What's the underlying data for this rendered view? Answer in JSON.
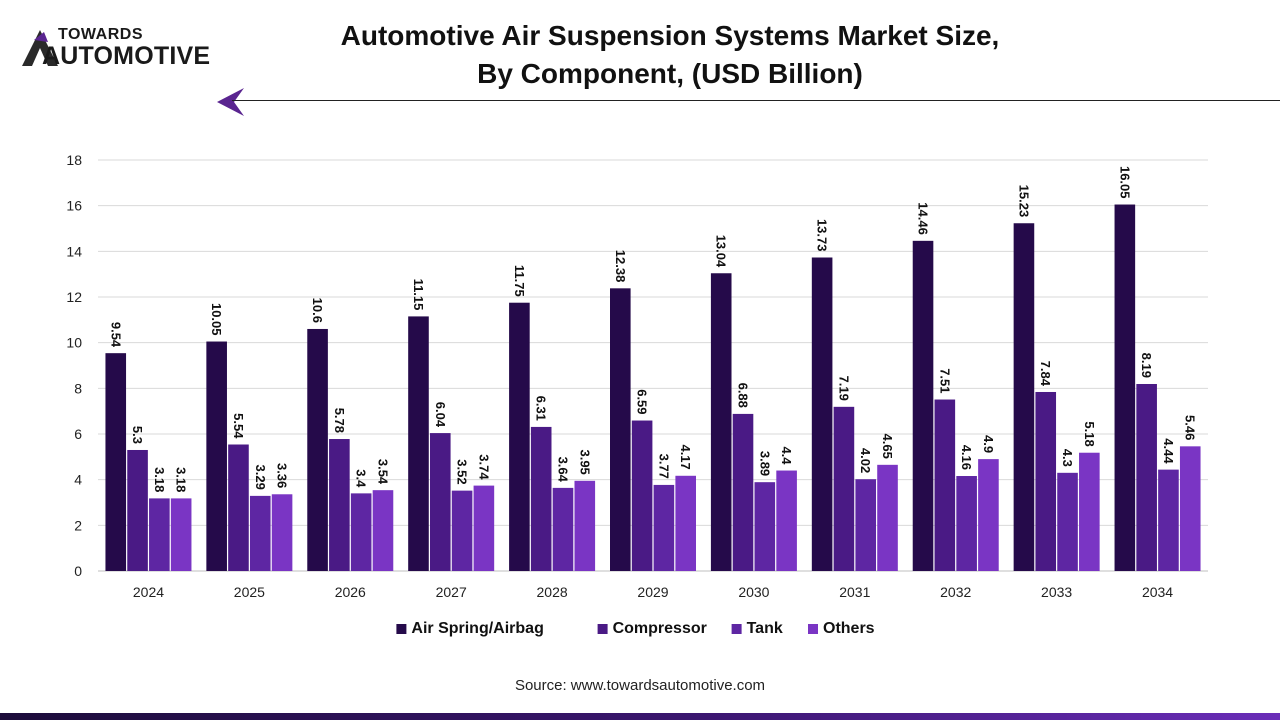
{
  "brand": {
    "line1": "TOWARDS",
    "line2": "AUTOMOTIVE"
  },
  "title_lines": [
    "Automotive Air Suspension Systems Market Size,",
    "By Component, (USD Billion)"
  ],
  "source": "Source: www.towardsautomotive.com",
  "colors": {
    "accent": "#5a2590",
    "series": [
      "#250a4a",
      "#4a1a85",
      "#5e26a3",
      "#7a35c4"
    ],
    "grid": "#d9d9d9"
  },
  "chart_data": {
    "type": "bar",
    "title": "Automotive Air Suspension Systems Market Size, By Component, (USD Billion)",
    "xlabel": "",
    "ylabel": "",
    "ylim": [
      0,
      18
    ],
    "yticks": [
      0,
      2,
      4,
      6,
      8,
      10,
      12,
      14,
      16,
      18
    ],
    "categories": [
      "2024",
      "2025",
      "2026",
      "2027",
      "2028",
      "2029",
      "2030",
      "2031",
      "2032",
      "2033",
      "2034"
    ],
    "series": [
      {
        "name": "Air Spring/Airbag",
        "values": [
          9.54,
          10.05,
          10.6,
          11.15,
          11.75,
          12.38,
          13.04,
          13.73,
          14.46,
          15.23,
          16.05
        ]
      },
      {
        "name": "Compressor",
        "values": [
          5.3,
          5.54,
          5.78,
          6.04,
          6.31,
          6.59,
          6.88,
          7.19,
          7.51,
          7.84,
          8.19
        ]
      },
      {
        "name": "Tank",
        "values": [
          3.18,
          3.29,
          3.4,
          3.52,
          3.64,
          3.77,
          3.89,
          4.02,
          4.16,
          4.3,
          4.44
        ]
      },
      {
        "name": "Others",
        "values": [
          3.18,
          3.36,
          3.54,
          3.74,
          3.95,
          4.17,
          4.4,
          4.65,
          4.9,
          5.18,
          5.46
        ]
      }
    ],
    "legend": "bottom",
    "grid": true
  }
}
